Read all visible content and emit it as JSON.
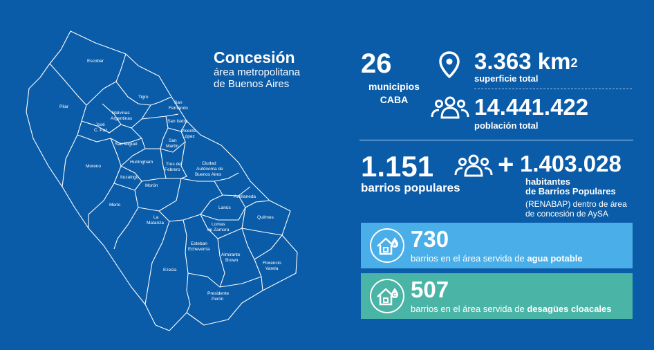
{
  "title": {
    "line1": "Concesión",
    "line2": "área metropolitana",
    "line3": "de Buenos Aires"
  },
  "stats": {
    "municipios_count": "26",
    "municipios_label": "municipios",
    "caba_label": "CABA",
    "surface_value": "3.363 km",
    "surface_sup": "2",
    "surface_label": "superficie total",
    "population_value": "14.441.422",
    "population_label": "población total",
    "barrios_value": "1.151",
    "barrios_label": "barrios populares",
    "plus_sign": "+",
    "habitantes_value": "1.403.028",
    "habitantes_l1": "habitantes",
    "habitantes_l2": "de Barrios Populares",
    "habitantes_l3": "(RENABAP) dentro de área",
    "habitantes_l4": "de concesión de AySA"
  },
  "services": [
    {
      "value": "730",
      "text_pre": "barrios en el área servida de ",
      "text_bold": "agua potable",
      "icon": "house-water-icon",
      "color": "#4aaee8"
    },
    {
      "value": "507",
      "text_pre": "barrios en el área servida de ",
      "text_bold": "desagües cloacales",
      "icon": "house-sewer-icon",
      "color": "#4ab4a6"
    }
  ],
  "map_labels": {
    "escobar": "Escobar",
    "pilar": "Pilar",
    "tigre": "Tigre",
    "malvinas1": "Malvinas",
    "malvinas2": "Argentinas",
    "sanfer1": "San",
    "sanfer2": "Fernando",
    "jose1": "José",
    "jose2": "C. Paz",
    "sanisidro": "San Isidro",
    "vicente1": "Vicente",
    "vicente2": "López",
    "sanmiguel": "San Miguel",
    "sanmartin1": "San",
    "sanmartin2": "Martín",
    "moreno": "Moreno",
    "hurlingham": "Hurlingham",
    "tres1": "Tres de",
    "tres2": "Febrero",
    "caba1": "Ciudad",
    "caba2": "Autónoma de",
    "caba3": "Buenos Aires",
    "ituzaingo": "Ituzaingó",
    "moron": "Morón",
    "avellaneda": "Avellaneda",
    "merlo": "Merlo",
    "lanus": "Lanús",
    "matanza1": "La",
    "matanza2": "Matanza",
    "quilmes": "Quilmes",
    "lomas1": "Lomas",
    "lomas2": "de Zamora",
    "esteban1": "Esteban",
    "esteban2": "Echeverría",
    "almirante1": "Almirante",
    "almirante2": "Brown",
    "florencio1": "Florencio",
    "florencio2": "Varela",
    "ezeiza": "Ezeiza",
    "peron1": "Presidente",
    "peron2": "Perón"
  }
}
